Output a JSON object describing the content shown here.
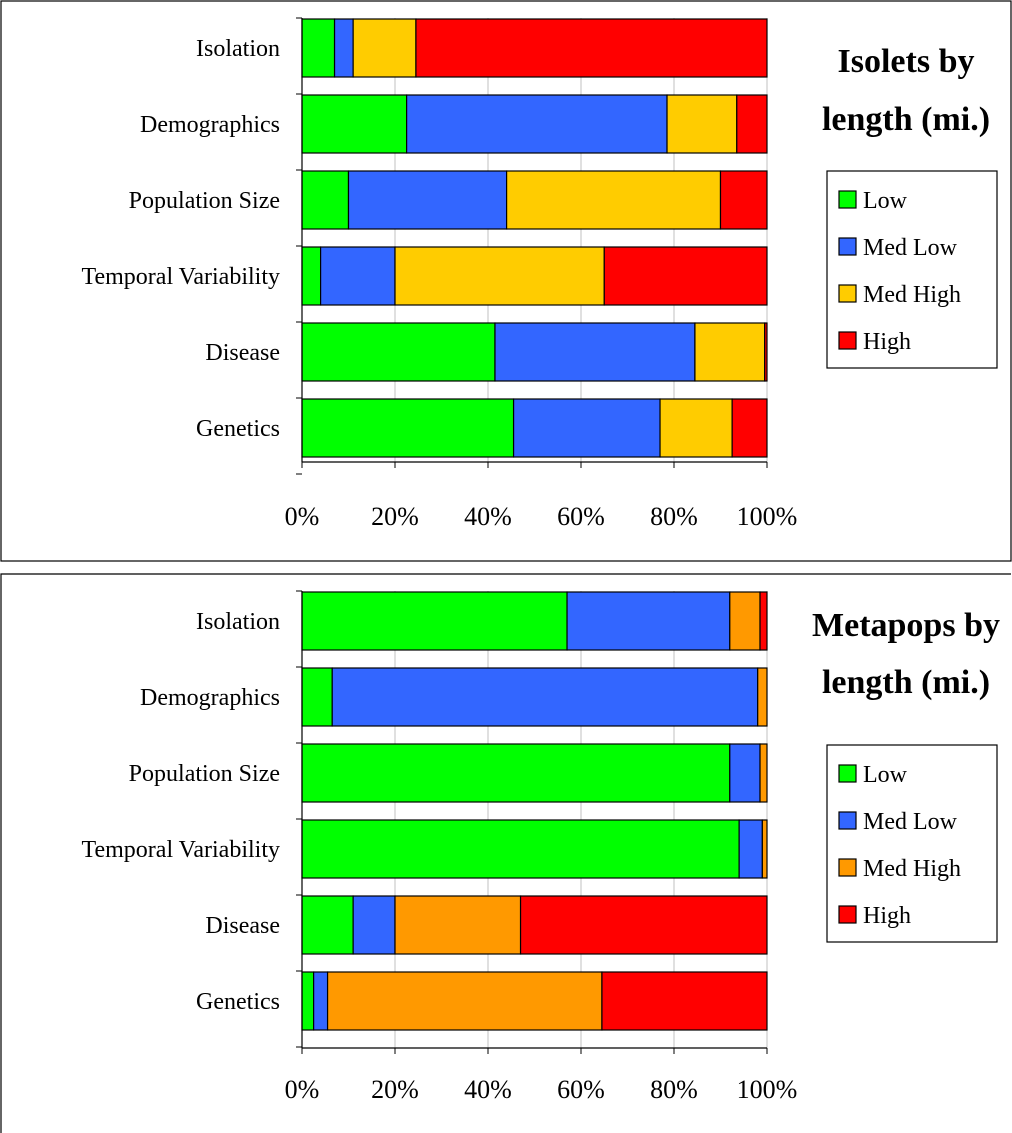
{
  "chart_data": [
    {
      "type": "bar",
      "stacked": "percent",
      "orientation": "horizontal",
      "title": "Isolets by length (mi.)",
      "title_lines": [
        "Isolets by",
        "length (mi.)"
      ],
      "categories": [
        "Isolation",
        "Demographics",
        "Population Size",
        "Temporal Variability",
        "Disease",
        "Genetics"
      ],
      "series": [
        {
          "name": "Low",
          "color": "#00ff00",
          "values": [
            7,
            22.5,
            10,
            4,
            41.5,
            45.5
          ]
        },
        {
          "name": "Med Low",
          "color": "#3366ff",
          "values": [
            4,
            56,
            34,
            16,
            43,
            31.5
          ]
        },
        {
          "name": "Med High",
          "color": "#ffcc00",
          "values": [
            13.5,
            15,
            46,
            45,
            15,
            15.5
          ]
        },
        {
          "name": "High",
          "color": "#ff0000",
          "values": [
            75.5,
            6.5,
            10,
            35,
            0.5,
            7.5
          ]
        }
      ],
      "x_ticks": [
        "0%",
        "20%",
        "40%",
        "60%",
        "80%",
        "100%"
      ],
      "xlim": [
        0,
        100
      ],
      "legend_position": "right",
      "grid": "vertical"
    },
    {
      "type": "bar",
      "stacked": "percent",
      "orientation": "horizontal",
      "title": "Metapops by length (mi.)",
      "title_lines": [
        "Metapops by",
        "length (mi.)"
      ],
      "categories": [
        "Isolation",
        "Demographics",
        "Population Size",
        "Temporal Variability",
        "Disease",
        "Genetics"
      ],
      "series": [
        {
          "name": "Low",
          "color": "#00ff00",
          "values": [
            57,
            6.5,
            92,
            94,
            11,
            2.5
          ]
        },
        {
          "name": "Med Low",
          "color": "#3366ff",
          "values": [
            35,
            91.5,
            6.5,
            5,
            9,
            3
          ]
        },
        {
          "name": "Med High",
          "color": "#ff9900",
          "values": [
            6.5,
            2,
            1.5,
            1,
            27,
            59
          ]
        },
        {
          "name": "High",
          "color": "#ff0000",
          "values": [
            1.5,
            0,
            0,
            0,
            53,
            35.5
          ]
        }
      ],
      "x_ticks": [
        "0%",
        "20%",
        "40%",
        "60%",
        "80%",
        "100%"
      ],
      "xlim": [
        0,
        100
      ],
      "legend_position": "right",
      "grid": "vertical"
    }
  ]
}
